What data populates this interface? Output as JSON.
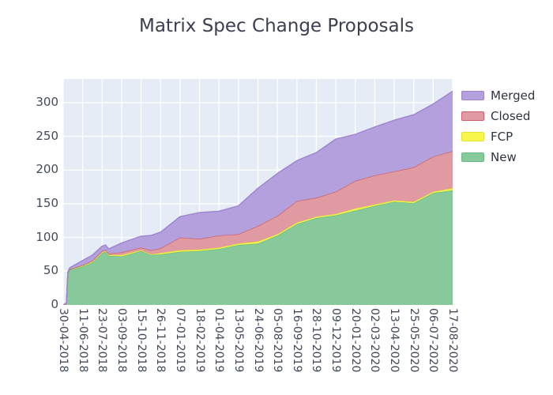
{
  "title": "Matrix Spec Change Proposals",
  "chart_data": {
    "type": "area",
    "stacked": true,
    "title": "Matrix Spec Change Proposals",
    "xlabel": "",
    "ylabel": "",
    "plot_bg": "#e5ecf6",
    "grid_color": "#ffffff",
    "x_tick_labels": [
      "30-04-2018",
      "11-06-2018",
      "23-07-2018",
      "03-09-2018",
      "15-10-2018",
      "26-11-2018",
      "07-01-2019",
      "18-02-2019",
      "01-04-2019",
      "13-05-2019",
      "24-06-2019",
      "05-08-2019",
      "16-09-2019",
      "28-10-2019",
      "09-12-2019",
      "20-01-2020",
      "02-03-2020",
      "13-04-2020",
      "25-05-2020",
      "06-07-2020",
      "17-08-2020"
    ],
    "x_tick_interval_days": 42,
    "x_day_range": [
      0,
      840
    ],
    "y_ticks": [
      0,
      50,
      100,
      150,
      200,
      250,
      300
    ],
    "ylim": [
      0,
      335
    ],
    "x_days": [
      0,
      7,
      10,
      14,
      42,
      63,
      84,
      91,
      98,
      126,
      168,
      189,
      210,
      252,
      294,
      336,
      378,
      420,
      462,
      504,
      546,
      588,
      630,
      672,
      714,
      756,
      798,
      840
    ],
    "series": [
      {
        "name": "New",
        "fill": "#88c99c",
        "line": "#69bd83",
        "values": [
          0,
          2,
          47,
          52,
          57,
          63,
          77,
          79,
          73,
          72,
          80,
          74,
          75,
          79,
          80,
          83,
          89,
          91,
          103,
          120,
          129,
          133,
          140,
          147,
          153,
          151,
          166,
          170
        ]
      },
      {
        "name": "FCP",
        "fill": "#f6f64d",
        "line": "#e3e32e",
        "values": [
          0,
          0,
          1,
          1,
          1,
          1,
          1,
          1,
          1,
          2,
          1,
          1,
          2,
          2,
          2,
          2,
          2,
          3,
          2,
          2,
          2,
          2,
          3,
          2,
          2,
          2,
          2,
          3
        ]
      },
      {
        "name": "Closed",
        "fill": "#e09aa2",
        "line": "#cf5f6a",
        "values": [
          0,
          0,
          0,
          0,
          1,
          2,
          2,
          2,
          2,
          4,
          4,
          6,
          7,
          19,
          16,
          18,
          14,
          23,
          27,
          32,
          28,
          33,
          41,
          43,
          43,
          51,
          52,
          55
        ]
      },
      {
        "name": "Merged",
        "fill": "#b3a0dc",
        "line": "#9d83cf",
        "values": [
          0,
          1,
          1,
          2,
          7,
          8,
          7,
          7,
          7,
          14,
          17,
          22,
          24,
          31,
          39,
          36,
          42,
          56,
          63,
          60,
          67,
          78,
          69,
          72,
          76,
          78,
          78,
          89
        ]
      }
    ],
    "legend": {
      "position": "right",
      "labels": [
        "Merged",
        "Closed",
        "FCP",
        "New"
      ]
    }
  }
}
